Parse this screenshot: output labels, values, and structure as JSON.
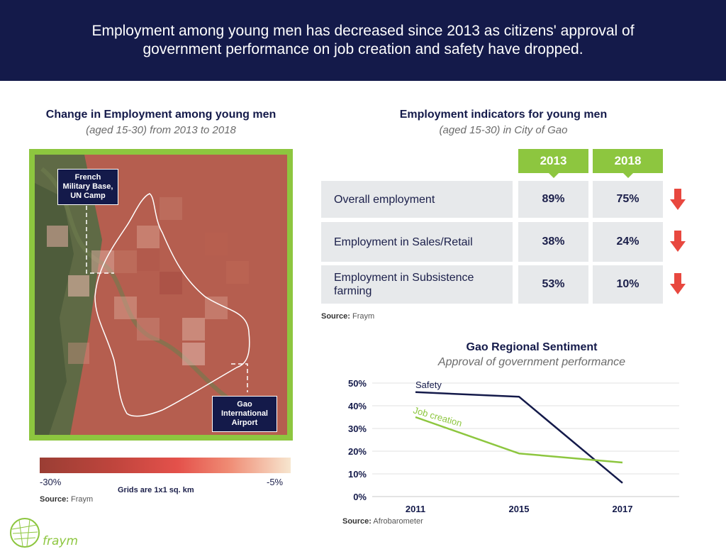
{
  "banner": {
    "headline": "Employment among young men has decreased since 2013 as citizens' approval of government performance on job creation and safety have dropped."
  },
  "map_section": {
    "title": "Change in Employment among young men",
    "subtitle": "(aged 15-30) from 2013 to 2018",
    "callout_base": "French Military Base, UN Camp",
    "callout_airport": "Gao International Airport",
    "legend_min": "-30%",
    "legend_max": "-5%",
    "grid_note": "Grids are 1x1 sq. km",
    "source_label": "Source:",
    "source_value": "Fraym",
    "colors": {
      "frame": "#8dc63f",
      "legend_low": "#9a3e34",
      "legend_mid": "#e4514b",
      "legend_high": "#f7e6cf"
    }
  },
  "table_section": {
    "title": "Employment indicators for young men",
    "subtitle": "(aged 15-30) in City of Gao",
    "years": [
      "2013",
      "2018"
    ],
    "rows": [
      {
        "label": "Overall employment",
        "v2013": "89%",
        "v2018": "75%",
        "trend": "down"
      },
      {
        "label": "Employment in Sales/Retail",
        "v2013": "38%",
        "v2018": "24%",
        "trend": "down"
      },
      {
        "label": "Employment in Subsistence farming",
        "v2013": "53%",
        "v2018": "10%",
        "trend": "down"
      }
    ],
    "source_label": "Source:",
    "source_value": "Fraym",
    "colors": {
      "tab": "#8dc63f",
      "cell": "#e7e9eb",
      "arrow": "#e8483f"
    }
  },
  "chart_data": {
    "type": "line",
    "title": "Gao Regional Sentiment",
    "subtitle": "Approval of government performance",
    "x": [
      "2011",
      "2015",
      "2017"
    ],
    "series": [
      {
        "name": "Safety",
        "values": [
          46,
          44,
          6
        ],
        "color": "#141a4a"
      },
      {
        "name": "Job creation",
        "values": [
          35,
          19,
          15
        ],
        "color": "#8dc63f"
      }
    ],
    "yticks": [
      "0%",
      "10%",
      "20%",
      "30%",
      "40%",
      "50%"
    ],
    "ylim": [
      0,
      50
    ],
    "grid": true,
    "source_label": "Source:",
    "source_value": "Afrobarometer"
  },
  "logo": {
    "text": "fraym"
  }
}
